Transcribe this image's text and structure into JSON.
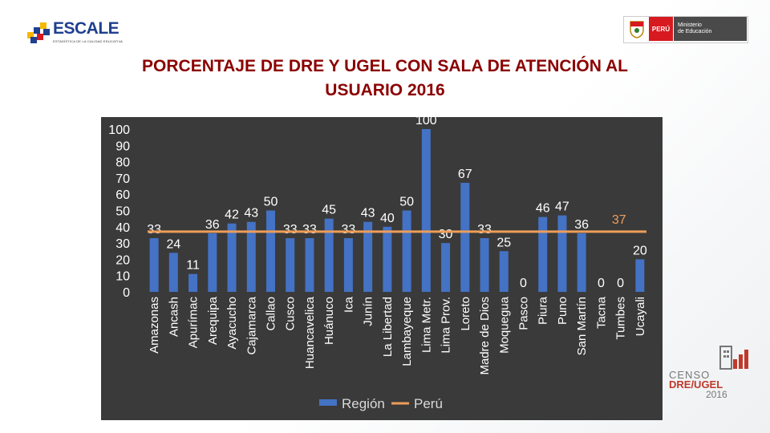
{
  "header": {
    "escale_logo": "ESCALE",
    "escale_tagline": "ESTADÍSTICA DE LA CALIDAD EDUCATIVA",
    "peru_label": "PERÚ",
    "ministry_label": "Ministerio\nde Educación"
  },
  "title": "PORCENTAJE DE DRE Y UGEL CON SALA DE ATENCIÓN AL USUARIO 2016",
  "title_line1": "PORCENTAJE DE DRE Y UGEL CON SALA DE ATENCIÓN AL",
  "title_line2": "USUARIO 2016",
  "censo_logo": {
    "line1": "CENSO",
    "line2": "DRE/UGEL",
    "line3": "2016"
  },
  "chart_data": {
    "type": "bar",
    "categories": [
      "Amazonas",
      "Ancash",
      "Apurímac",
      "Arequipa",
      "Ayacucho",
      "Cajamarca",
      "Callao",
      "Cusco",
      "Huancavelica",
      "Huánuco",
      "Ica",
      "Junín",
      "La Libertad",
      "Lambayeque",
      "Lima Metr.",
      "Lima Prov.",
      "Loreto",
      "Madre de Dios",
      "Moquegua",
      "Pasco",
      "Piura",
      "Puno",
      "San Martín",
      "Tacna",
      "Tumbes",
      "Ucayali"
    ],
    "series": [
      {
        "name": "Región",
        "type": "bar",
        "values": [
          33,
          24,
          11,
          36,
          42,
          43,
          50,
          33,
          33,
          45,
          33,
          43,
          40,
          50,
          100,
          30,
          67,
          33,
          25,
          0,
          46,
          47,
          36,
          0,
          0,
          20
        ],
        "color": "#4472c4"
      },
      {
        "name": "Perú",
        "type": "line",
        "value": 37,
        "color": "#ed9d5a"
      }
    ],
    "yticks": [
      0,
      10,
      20,
      30,
      40,
      50,
      60,
      70,
      80,
      90,
      100
    ],
    "ylim": [
      0,
      100
    ],
    "legend_position": "bottom",
    "grid": false
  }
}
